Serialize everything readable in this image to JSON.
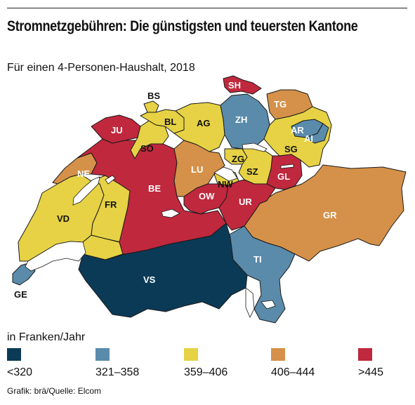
{
  "header": {
    "title": "Stromnetzgebühren: Die günstigsten und teuersten Kantone",
    "subtitle": "Für einen 4-Personen-Haushalt, 2018"
  },
  "colors": {
    "lt320": "#0b3a56",
    "r321_358": "#5a8bab",
    "r359_406": "#e6d244",
    "r406_444": "#d59149",
    "gt445": "#c0283d",
    "lake": "#ffffff",
    "border": "#1a1a1a"
  },
  "legend": {
    "title": "in Franken/Jahr",
    "items": [
      {
        "label": "<320",
        "color_key": "lt320"
      },
      {
        "label": "321–358",
        "color_key": "r321_358"
      },
      {
        "label": "359–406",
        "color_key": "r359_406"
      },
      {
        "label": "406–444",
        "color_key": "r406_444"
      },
      {
        "label": ">445",
        "color_key": "gt445"
      }
    ]
  },
  "cantons": {
    "BS": "BS",
    "SH": "SH",
    "TG": "TG",
    "ZH": "ZH",
    "BL": "BL",
    "AG": "AG",
    "JU": "JU",
    "AR": "AR",
    "AI": "AI",
    "SO": "SO",
    "SG": "SG",
    "ZG": "ZG",
    "NE": "NE",
    "LU": "LU",
    "SZ": "SZ",
    "GL": "GL",
    "NW": "NW",
    "OW": "OW",
    "BE": "BE",
    "UR": "UR",
    "GR": "GR",
    "VD": "VD",
    "FR": "FR",
    "TI": "TI",
    "VS": "VS",
    "GE": "GE"
  },
  "footer": {
    "source": "Grafik: brä/Quelle: Elcom"
  }
}
